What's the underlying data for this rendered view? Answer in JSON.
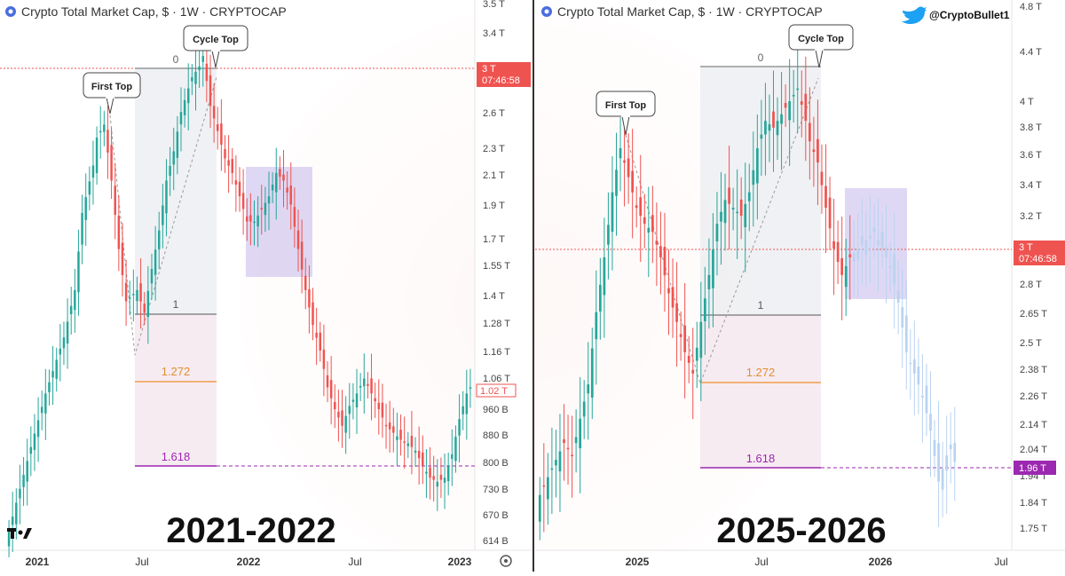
{
  "colors": {
    "up": "#26a69a",
    "down": "#ef5350",
    "projection": "#b9d3f0",
    "fib_1": "#555555",
    "fib_1272": "#f0a04b",
    "fib_1618": "#9c27b0",
    "current_price": "#ef5350",
    "box": "#b7a8e6",
    "divider": "#333333"
  },
  "panels": [
    {
      "title": "Crypto Total Market Cap, $ · 1W · CRYPTOCAP",
      "big_label": "2021-2022",
      "price_tag": "3 T",
      "price_tag_time": "07:46:58",
      "secondary_tag": "1.02 T",
      "logo_icon": "tradingview-logo-icon",
      "settings_icon": "gear-icon",
      "y_ticks": [
        "3.5 T",
        "3.4 T",
        "2.6 T",
        "2.3 T",
        "2.1 T",
        "1.9 T",
        "1.7 T",
        "1.55 T",
        "1.4 T",
        "1.28 T",
        "1.16 T",
        "1.06 T",
        "960 B",
        "880 B",
        "800 B",
        "730 B",
        "670 B",
        "614 B"
      ],
      "x_ticks": [
        "2021",
        "Jul",
        "2022",
        "Jul",
        "2023"
      ],
      "annotations": [
        "First Top",
        "Cycle Top"
      ],
      "fib_levels": [
        "0",
        "1",
        "1.272",
        "1.618"
      ]
    },
    {
      "title": "Crypto Total Market Cap, $ · 1W · CRYPTOCAP",
      "big_label": "2025-2026",
      "price_tag": "3 T",
      "price_tag_time": "07:46:58",
      "secondary_tag": "1.96 T",
      "twitter_icon": "twitter-bird-icon",
      "handle": "@CryptoBullet1",
      "y_ticks": [
        "4.8 T",
        "4.4 T",
        "4 T",
        "3.8 T",
        "3.6 T",
        "3.4 T",
        "3.2 T",
        "2.8 T",
        "2.65 T",
        "2.5 T",
        "2.38 T",
        "2.26 T",
        "2.14 T",
        "2.04 T",
        "1.94 T",
        "1.84 T",
        "1.75 T"
      ],
      "x_ticks": [
        "2025",
        "Jul",
        "2026",
        "Jul"
      ],
      "annotations": [
        "First Top",
        "Cycle Top"
      ],
      "fib_levels": [
        "0",
        "1",
        "1.272",
        "1.618"
      ]
    }
  ],
  "chart_data": [
    {
      "type": "candlestick",
      "title": "Crypto Total Market Cap, $ · 1W · CRYPTOCAP",
      "period": "2021-2022",
      "y_scale": "log",
      "ylim": [
        560,
        3600
      ],
      "y_unit": "billions USD",
      "start_week": "2021-01-04",
      "close_path": [
        [
          0,
          640
        ],
        [
          6,
          840
        ],
        [
          10,
          1000
        ],
        [
          15,
          1200
        ],
        [
          18,
          1400
        ],
        [
          20,
          1800
        ],
        [
          23,
          2100
        ],
        [
          24,
          2300
        ],
        [
          26,
          2400
        ],
        [
          28,
          2000
        ],
        [
          30,
          1600
        ],
        [
          32,
          1350
        ],
        [
          35,
          1400
        ],
        [
          37,
          1300
        ],
        [
          39,
          1500
        ],
        [
          41,
          1700
        ],
        [
          43,
          2000
        ],
        [
          45,
          2200
        ],
        [
          47,
          2500
        ],
        [
          49,
          2700
        ],
        [
          50,
          2800
        ],
        [
          52,
          2900
        ],
        [
          53,
          3000
        ],
        [
          55,
          2550
        ],
        [
          57,
          2350
        ],
        [
          59,
          2150
        ],
        [
          61,
          2050
        ],
        [
          63,
          1900
        ],
        [
          65,
          1750
        ],
        [
          67,
          1750
        ],
        [
          69,
          1820
        ],
        [
          71,
          1900
        ],
        [
          73,
          2050
        ],
        [
          75,
          2000
        ],
        [
          77,
          1850
        ],
        [
          79,
          1600
        ],
        [
          81,
          1400
        ],
        [
          83,
          1250
        ],
        [
          85,
          1150
        ],
        [
          87,
          1020
        ],
        [
          89,
          950
        ],
        [
          91,
          900
        ],
        [
          93,
          960
        ],
        [
          95,
          1000
        ],
        [
          97,
          1050
        ],
        [
          99,
          1000
        ],
        [
          101,
          950
        ],
        [
          103,
          900
        ],
        [
          105,
          880
        ],
        [
          107,
          860
        ],
        [
          109,
          850
        ],
        [
          111,
          830
        ],
        [
          113,
          790
        ],
        [
          115,
          760
        ],
        [
          117,
          750
        ],
        [
          119,
          760
        ],
        [
          121,
          820
        ],
        [
          123,
          920
        ],
        [
          125,
          1000
        ],
        [
          126,
          1020
        ]
      ],
      "fib_levels": [
        {
          "label": "0",
          "value": 3000
        },
        {
          "label": "1",
          "value": 1330
        },
        {
          "label": "1.272",
          "value": 1090
        },
        {
          "label": "1.618",
          "value": 790
        }
      ],
      "annotations": [
        {
          "text": "First Top",
          "value": 2750
        },
        {
          "text": "Cycle Top",
          "value": 3000
        }
      ],
      "current_price_tag": "3 T",
      "last_price_tag": "1.02 T"
    },
    {
      "type": "candlestick",
      "title": "Crypto Total Market Cap, $ · 1W · CRYPTOCAP",
      "period": "2025-2026",
      "y_scale": "log",
      "ylim": [
        1640,
        4920
      ],
      "y_unit": "trillions USD",
      "start_week": "2024-07-08",
      "close_path": [
        [
          0,
          1900
        ],
        [
          3,
          2000
        ],
        [
          6,
          2100
        ],
        [
          8,
          2050
        ],
        [
          10,
          2200
        ],
        [
          12,
          2350
        ],
        [
          14,
          2700
        ],
        [
          16,
          3000
        ],
        [
          18,
          3400
        ],
        [
          19,
          3550
        ],
        [
          20,
          3700
        ],
        [
          22,
          3500
        ],
        [
          24,
          3300
        ],
        [
          26,
          3200
        ],
        [
          28,
          3150
        ],
        [
          30,
          3000
        ],
        [
          32,
          2800
        ],
        [
          34,
          2650
        ],
        [
          36,
          2500
        ],
        [
          38,
          2400
        ],
        [
          40,
          2650
        ],
        [
          42,
          2900
        ],
        [
          44,
          3200
        ],
        [
          46,
          3350
        ],
        [
          48,
          3300
        ],
        [
          50,
          3250
        ],
        [
          52,
          3400
        ],
        [
          54,
          3700
        ],
        [
          56,
          3900
        ],
        [
          58,
          3850
        ],
        [
          60,
          3950
        ],
        [
          62,
          4050
        ],
        [
          64,
          4150
        ],
        [
          66,
          3900
        ],
        [
          67,
          3750
        ],
        [
          69,
          3600
        ],
        [
          71,
          3300
        ],
        [
          73,
          3050
        ],
        [
          75,
          2900
        ],
        [
          77,
          3000
        ]
      ],
      "projection_path": [
        [
          77,
          3000
        ],
        [
          79,
          3050
        ],
        [
          81,
          3100
        ],
        [
          83,
          3150
        ],
        [
          85,
          3050
        ],
        [
          87,
          2950
        ],
        [
          89,
          2750
        ],
        [
          91,
          2500
        ],
        [
          93,
          2400
        ],
        [
          95,
          2300
        ],
        [
          97,
          2150
        ],
        [
          99,
          1950
        ],
        [
          101,
          2050
        ],
        [
          103,
          2100
        ]
      ],
      "fib_levels": [
        {
          "label": "0",
          "value": 4150
        },
        {
          "label": "1",
          "value": 2620
        },
        {
          "label": "1.272",
          "value": 2290
        },
        {
          "label": "1.618",
          "value": 1960
        }
      ],
      "annotations": [
        {
          "text": "First Top",
          "value": 3750
        },
        {
          "text": "Cycle Top",
          "value": 4150
        }
      ],
      "current_price_tag": "3 T",
      "target_tag": "1.96 T"
    }
  ]
}
